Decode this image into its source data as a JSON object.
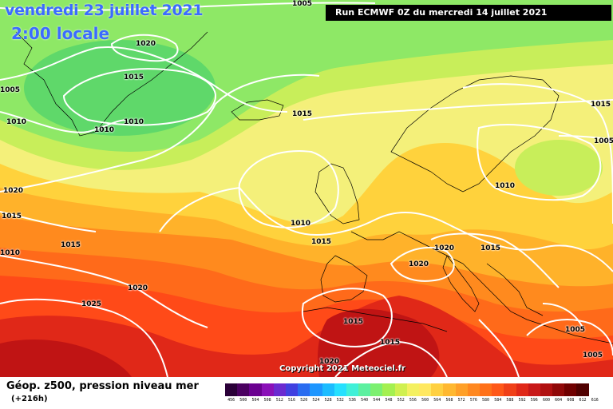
{
  "header": {
    "date": "vendredi 23 juillet 2021",
    "time": "2:00 locale",
    "run": "Run ECMWF 0Z du mercredi 14 juillet 2021",
    "copyright": "Copyright 2021 Meteociel.fr"
  },
  "footer": {
    "title": "Géop. z500, pression niveau mer",
    "subtitle": "(+216h)"
  },
  "scale": {
    "labels": [
      "456",
      "500",
      "504",
      "508",
      "512",
      "516",
      "520",
      "524",
      "528",
      "532",
      "536",
      "540",
      "544",
      "548",
      "552",
      "556",
      "560",
      "564",
      "568",
      "572",
      "576",
      "580",
      "584",
      "588",
      "592",
      "596",
      "600",
      "604",
      "608",
      "612",
      "616"
    ],
    "colors": [
      "#2a0038",
      "#4a0060",
      "#6a0090",
      "#8a10b8",
      "#6a2ad0",
      "#4040e0",
      "#2a6cf0",
      "#1e96ff",
      "#1cbcff",
      "#26e0ff",
      "#40f0d8",
      "#5cf0a0",
      "#7cf070",
      "#a4f050",
      "#d0f050",
      "#f4f060",
      "#ffe860",
      "#ffd040",
      "#ffb830",
      "#ffa028",
      "#ff8820",
      "#ff7018",
      "#ff5818",
      "#f04018",
      "#e02818",
      "#c81818",
      "#b01010",
      "#900808",
      "#700000",
      "#500000"
    ]
  },
  "map": {
    "colors": {
      "green_dark": "#5fd86a",
      "green": "#8ee866",
      "yellow_green": "#c8ee5a",
      "yellow": "#f4f07a",
      "orange_light": "#ffd23c",
      "orange": "#ffb22a",
      "orange_dark": "#ff8a1e",
      "red_orange": "#ff6a1a",
      "red": "#ff4a18",
      "red_dark": "#e02818",
      "crimson": "#c01414"
    },
    "isobar_labels": [
      {
        "id": "p1005-top",
        "value": "1005"
      },
      {
        "id": "p1020-greenland",
        "value": "1020"
      },
      {
        "id": "p1015-greenland",
        "value": "1015"
      },
      {
        "id": "p1005-left",
        "value": "1005"
      },
      {
        "id": "p1010-left",
        "value": "1010"
      },
      {
        "id": "p1010-greenland-s",
        "value": "1010"
      },
      {
        "id": "p1010-sea",
        "value": "1010"
      },
      {
        "id": "p1015-iceland",
        "value": "1015"
      },
      {
        "id": "p1015-ne",
        "value": "1015"
      },
      {
        "id": "p1005-ne",
        "value": "1005"
      },
      {
        "id": "p1020-atl",
        "value": "1020"
      },
      {
        "id": "p1015-atl-left",
        "value": "1015"
      },
      {
        "id": "p1010-edge",
        "value": "1010"
      },
      {
        "id": "p1010-ireland",
        "value": "1010"
      },
      {
        "id": "p1010-baltic",
        "value": "1010"
      },
      {
        "id": "p1015-bay",
        "value": "1015"
      },
      {
        "id": "p1015-atl",
        "value": "1015"
      },
      {
        "id": "p1020-alps",
        "value": "1020"
      },
      {
        "id": "p1015-alps",
        "value": "1015"
      },
      {
        "id": "p1020-italy",
        "value": "1020"
      },
      {
        "id": "p1020-azores",
        "value": "1020"
      },
      {
        "id": "p1025-azores",
        "value": "1025"
      },
      {
        "id": "p1015-spain",
        "value": "1015"
      },
      {
        "id": "p1015-africa",
        "value": "1015"
      },
      {
        "id": "p1005-balkan",
        "value": "1005"
      },
      {
        "id": "p1005-med",
        "value": "1005"
      },
      {
        "id": "p1020-africa",
        "value": "1020"
      }
    ]
  }
}
